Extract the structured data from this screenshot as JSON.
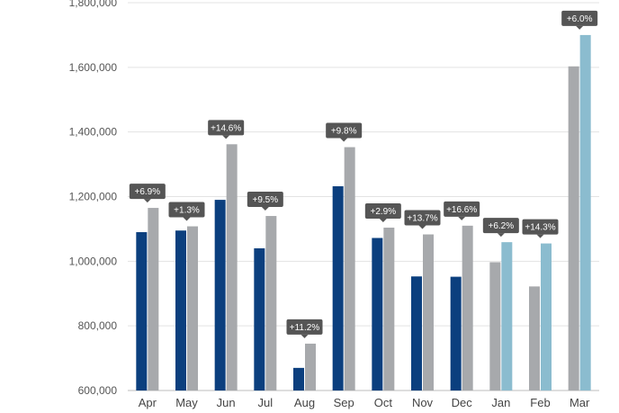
{
  "chart_data": {
    "type": "bar",
    "title": "",
    "xlabel": "",
    "ylabel": "",
    "ylim": [
      600000,
      1800000
    ],
    "yticks": [
      600000,
      800000,
      1000000,
      1200000,
      1400000,
      1600000,
      1800000
    ],
    "ytick_labels": [
      "600,000",
      "800,000",
      "1,000,000",
      "1,200,000",
      "1,400,000",
      "1,600,000",
      "1,800,000"
    ],
    "grid": true,
    "legend": "none",
    "categories": [
      "Apr",
      "May",
      "Jun",
      "Jul",
      "Aug",
      "Sep",
      "Oct",
      "Nov",
      "Dec",
      "Jan",
      "Feb",
      "Mar"
    ],
    "series": [
      {
        "color": "#0b3f7e",
        "values": [
          1090000,
          1095000,
          1190000,
          1040000,
          670000,
          1232000,
          1072000,
          953000,
          952000,
          null,
          null,
          null
        ]
      },
      {
        "color": "#a7a9ac",
        "values": [
          1165000,
          1108000,
          1362000,
          1140000,
          745000,
          1353000,
          1104000,
          1083000,
          1110000,
          997000,
          922000,
          1603000
        ]
      },
      {
        "color": "#8bbccf",
        "values": [
          null,
          null,
          null,
          null,
          null,
          null,
          null,
          null,
          null,
          1059000,
          1055000,
          1700000
        ]
      }
    ],
    "annotations": [
      "+6.9%",
      "+1.3%",
      "+14.6%",
      "+9.5%",
      "+11.2%",
      "+9.8%",
      "+2.9%",
      "+13.7%",
      "+16.6%",
      "+6.2%",
      "+14.3%",
      "+6.0%"
    ],
    "annotation_color": "#555555"
  }
}
